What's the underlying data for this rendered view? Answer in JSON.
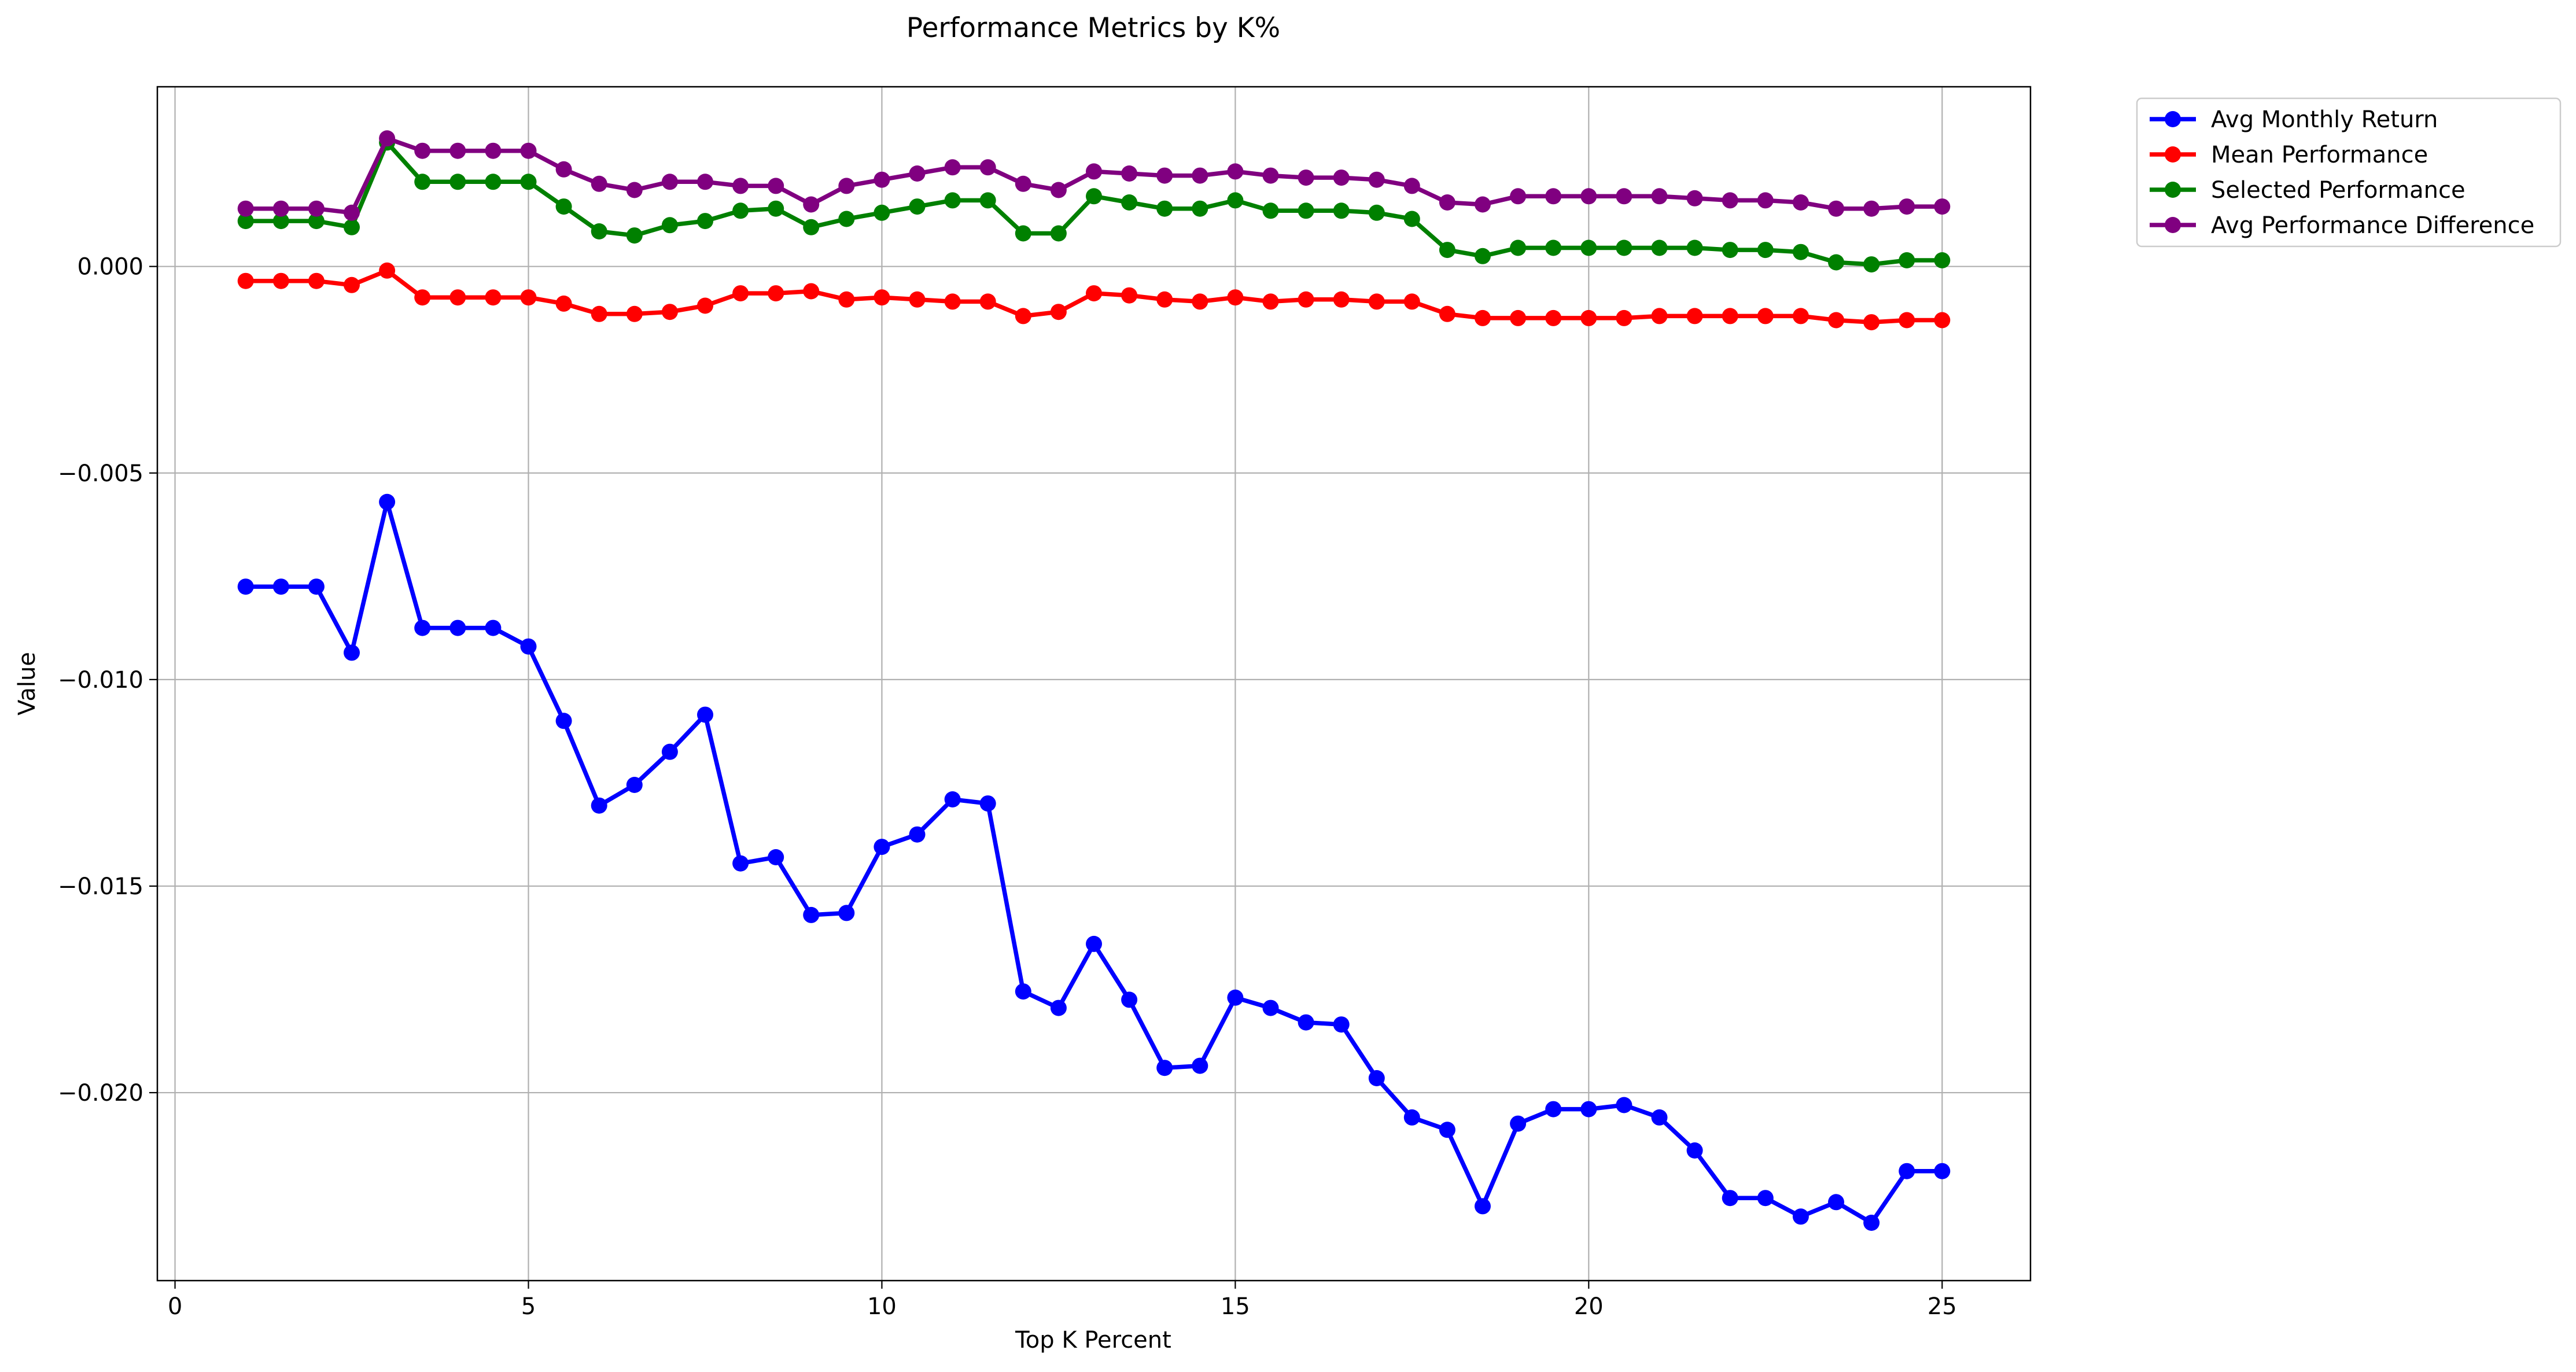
{
  "chart_data": {
    "type": "line",
    "title": "Performance Metrics by K%",
    "xlabel": "Top K Percent",
    "ylabel": "Value",
    "xlim": [
      -0.25,
      26.25
    ],
    "ylim": [
      -0.02455,
      0.00435
    ],
    "xticks": [
      0,
      5,
      10,
      15,
      20,
      25
    ],
    "xtick_labels": [
      "0",
      "5",
      "10",
      "15",
      "20",
      "25"
    ],
    "yticks": [
      -0.02,
      -0.015,
      -0.01,
      -0.005,
      0.0
    ],
    "ytick_labels": [
      "−0.020",
      "−0.015",
      "−0.010",
      "−0.005",
      "0.000"
    ],
    "grid": true,
    "legend_position": "outside-top-right",
    "x": [
      1,
      1.5,
      2,
      2.5,
      3,
      3.5,
      4,
      4.5,
      5,
      5.5,
      6,
      6.5,
      7,
      7.5,
      8,
      8.5,
      9,
      9.5,
      10,
      10.5,
      11,
      11.5,
      12,
      12.5,
      13,
      13.5,
      14,
      14.5,
      15,
      15.5,
      16,
      16.5,
      17,
      17.5,
      18,
      18.5,
      19,
      19.5,
      20,
      20.5,
      21,
      21.5,
      22,
      22.5,
      23,
      23.5,
      24,
      24.5,
      25
    ],
    "series": [
      {
        "name": "Avg Monthly Return",
        "color": "#0000ff",
        "values": [
          -0.00775,
          -0.00775,
          -0.00775,
          -0.00935,
          -0.0057,
          -0.00875,
          -0.00875,
          -0.00875,
          -0.0092,
          -0.011,
          -0.01305,
          -0.01255,
          -0.01175,
          -0.01085,
          -0.01445,
          -0.0143,
          -0.0157,
          -0.01565,
          -0.01405,
          -0.01375,
          -0.0129,
          -0.013,
          -0.01755,
          -0.01795,
          -0.0164,
          -0.01775,
          -0.0194,
          -0.01935,
          -0.0177,
          -0.01795,
          -0.0183,
          -0.01835,
          -0.01965,
          -0.0206,
          -0.0209,
          -0.02275,
          -0.02075,
          -0.0204,
          -0.0204,
          -0.0203,
          -0.0206,
          -0.0214,
          -0.02255,
          -0.02255,
          -0.023,
          -0.02265,
          -0.02315,
          -0.0219,
          -0.0219
        ]
      },
      {
        "name": "Mean Performance",
        "color": "#ff0000",
        "values": [
          -0.00035,
          -0.00035,
          -0.00035,
          -0.00045,
          -0.0001,
          -0.00075,
          -0.00075,
          -0.00075,
          -0.00075,
          -0.0009,
          -0.00115,
          -0.00115,
          -0.0011,
          -0.00095,
          -0.00065,
          -0.00065,
          -0.0006,
          -0.0008,
          -0.00075,
          -0.0008,
          -0.00085,
          -0.00085,
          -0.0012,
          -0.0011,
          -0.00065,
          -0.0007,
          -0.0008,
          -0.00085,
          -0.00075,
          -0.00085,
          -0.0008,
          -0.0008,
          -0.00085,
          -0.00085,
          -0.00115,
          -0.00125,
          -0.00125,
          -0.00125,
          -0.00125,
          -0.00125,
          -0.0012,
          -0.0012,
          -0.0012,
          -0.0012,
          -0.0012,
          -0.0013,
          -0.00135,
          -0.0013,
          -0.0013
        ]
      },
      {
        "name": "Selected Performance",
        "color": "#008000",
        "values": [
          0.0011,
          0.0011,
          0.0011,
          0.00095,
          0.003,
          0.00205,
          0.00205,
          0.00205,
          0.00205,
          0.00145,
          0.00085,
          0.00075,
          0.001,
          0.0011,
          0.00135,
          0.0014,
          0.00095,
          0.00115,
          0.0013,
          0.00145,
          0.0016,
          0.0016,
          0.0008,
          0.0008,
          0.0017,
          0.00155,
          0.0014,
          0.0014,
          0.0016,
          0.00135,
          0.00135,
          0.00135,
          0.0013,
          0.00115,
          0.0004,
          0.00025,
          0.00045,
          0.00045,
          0.00045,
          0.00045,
          0.00045,
          0.00045,
          0.0004,
          0.0004,
          0.00035,
          0.0001,
          5e-05,
          0.00015,
          0.00015
        ]
      },
      {
        "name": "Avg Performance Difference",
        "color": "#800080",
        "values": [
          0.0014,
          0.0014,
          0.0014,
          0.0013,
          0.0031,
          0.0028,
          0.0028,
          0.0028,
          0.0028,
          0.00235,
          0.002,
          0.00185,
          0.00205,
          0.00205,
          0.00195,
          0.00195,
          0.0015,
          0.00195,
          0.0021,
          0.00225,
          0.0024,
          0.0024,
          0.002,
          0.00185,
          0.0023,
          0.00225,
          0.0022,
          0.0022,
          0.0023,
          0.0022,
          0.00215,
          0.00215,
          0.0021,
          0.00195,
          0.00155,
          0.0015,
          0.0017,
          0.0017,
          0.0017,
          0.0017,
          0.0017,
          0.00165,
          0.0016,
          0.0016,
          0.00155,
          0.0014,
          0.0014,
          0.00145,
          0.00145
        ]
      }
    ]
  }
}
